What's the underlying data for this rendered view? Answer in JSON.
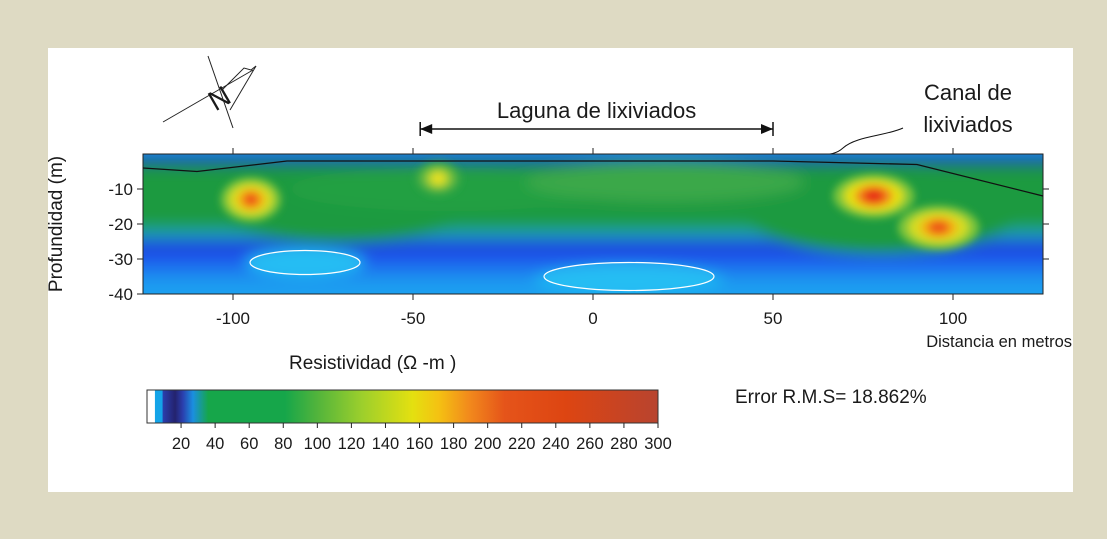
{
  "chart_data": {
    "type": "heatmap",
    "annotations": {
      "north": "N",
      "lagoon": "Laguna de lixiviados",
      "canal_line1": "Canal de",
      "canal_line2": "lixiviados",
      "error": "Error R.M.S= 18.862%"
    },
    "xaxis": {
      "label": "Distancia en metros",
      "range": [
        -125,
        125
      ],
      "ticks": [
        -100,
        -50,
        0,
        50,
        100
      ]
    },
    "yaxis": {
      "label": "Profundidad (m)",
      "range": [
        -40,
        0
      ],
      "ticks": [
        -10,
        -20,
        -30,
        -40
      ]
    },
    "colorbar": {
      "title": "Resistividad (Ω -m )",
      "range": [
        0,
        300
      ],
      "ticks": [
        20,
        40,
        60,
        80,
        100,
        120,
        140,
        160,
        180,
        200,
        220,
        240,
        260,
        280,
        300
      ]
    },
    "lagoon_extent": [
      -48,
      50
    ],
    "surface_profile": [
      [
        -125,
        -4
      ],
      [
        -110,
        -5
      ],
      [
        -85,
        -2
      ],
      [
        -50,
        -2
      ],
      [
        0,
        -2
      ],
      [
        50,
        -2
      ],
      [
        90,
        -3
      ],
      [
        125,
        -12
      ]
    ],
    "resistivity_anomalies": [
      {
        "x": -95,
        "depth": -13,
        "value": 220
      },
      {
        "x": -43,
        "depth": -7,
        "value": 130
      },
      {
        "x": 78,
        "depth": -12,
        "value": 240
      },
      {
        "x": 96,
        "depth": -21,
        "value": 200
      },
      {
        "x": -80,
        "depth": -31,
        "value": 12
      },
      {
        "x": 10,
        "depth": -35,
        "value": 12
      }
    ]
  }
}
